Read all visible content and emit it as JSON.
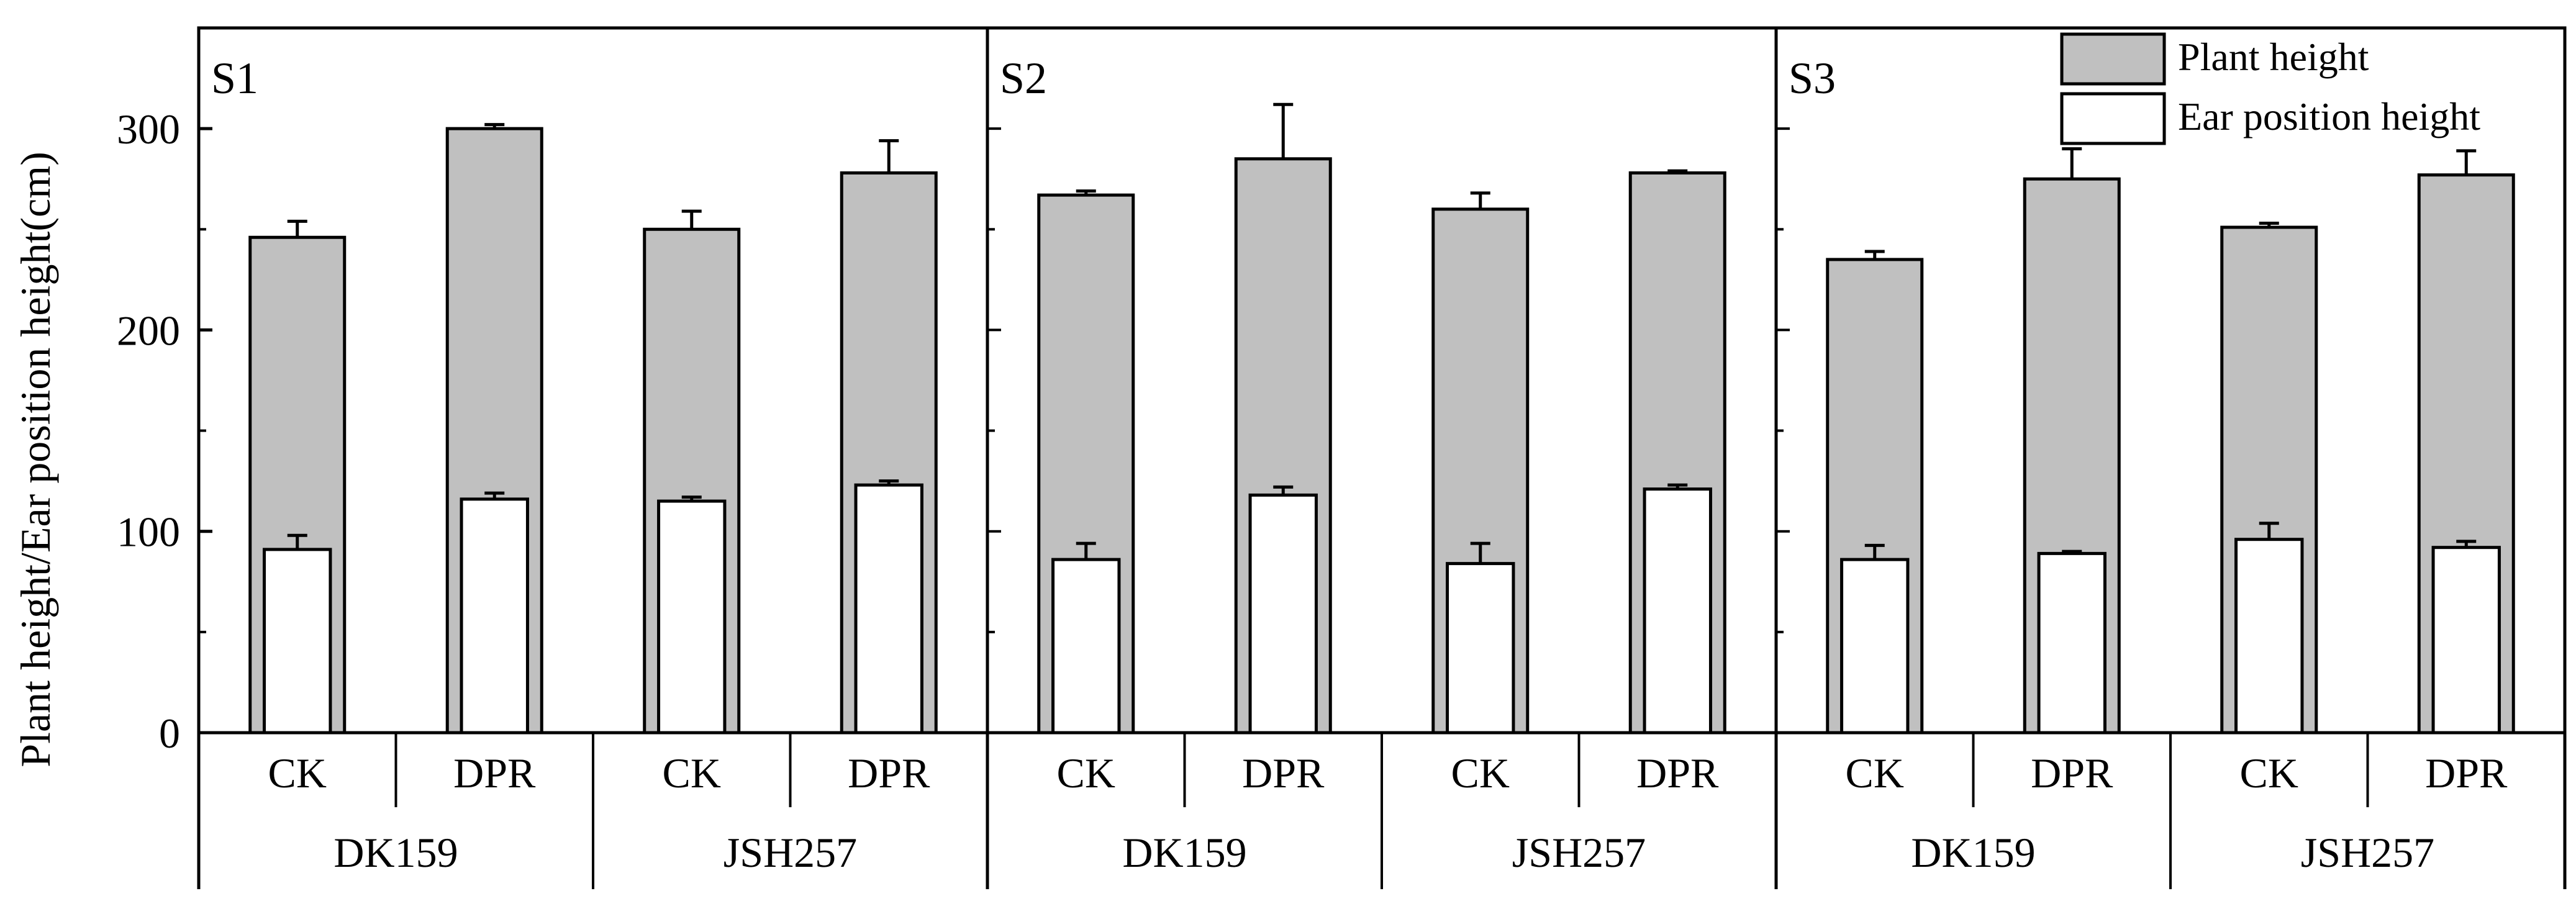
{
  "chart_data": {
    "type": "bar",
    "subtype": "overlaid-bar-with-error-bars",
    "ylabel": "Plant height/Ear position height(cm)",
    "ylim": [
      0,
      350
    ],
    "yticks": [
      0,
      100,
      200,
      300
    ],
    "legend": {
      "position": "top-right",
      "entries": [
        {
          "name": "Plant height",
          "color": "#c0c0c0"
        },
        {
          "name": "Ear position height",
          "color": "#ffffff"
        }
      ]
    },
    "panels": [
      {
        "label": "S1",
        "groups": [
          {
            "name": "DK159",
            "treatments": [
              {
                "name": "CK",
                "plant_height": 246,
                "plant_height_err": 8,
                "ear_height": 91,
                "ear_height_err": 7
              },
              {
                "name": "DPR",
                "plant_height": 300,
                "plant_height_err": 2,
                "ear_height": 116,
                "ear_height_err": 3
              }
            ]
          },
          {
            "name": "JSH257",
            "treatments": [
              {
                "name": "CK",
                "plant_height": 250,
                "plant_height_err": 9,
                "ear_height": 115,
                "ear_height_err": 2
              },
              {
                "name": "DPR",
                "plant_height": 278,
                "plant_height_err": 16,
                "ear_height": 123,
                "ear_height_err": 2
              }
            ]
          }
        ]
      },
      {
        "label": "S2",
        "groups": [
          {
            "name": "DK159",
            "treatments": [
              {
                "name": "CK",
                "plant_height": 267,
                "plant_height_err": 2,
                "ear_height": 86,
                "ear_height_err": 8
              },
              {
                "name": "DPR",
                "plant_height": 285,
                "plant_height_err": 27,
                "ear_height": 118,
                "ear_height_err": 4
              }
            ]
          },
          {
            "name": "JSH257",
            "treatments": [
              {
                "name": "CK",
                "plant_height": 260,
                "plant_height_err": 8,
                "ear_height": 84,
                "ear_height_err": 10
              },
              {
                "name": "DPR",
                "plant_height": 278,
                "plant_height_err": 1,
                "ear_height": 121,
                "ear_height_err": 2
              }
            ]
          }
        ]
      },
      {
        "label": "S3",
        "groups": [
          {
            "name": "DK159",
            "treatments": [
              {
                "name": "CK",
                "plant_height": 235,
                "plant_height_err": 4,
                "ear_height": 86,
                "ear_height_err": 7
              },
              {
                "name": "DPR",
                "plant_height": 275,
                "plant_height_err": 15,
                "ear_height": 89,
                "ear_height_err": 1
              }
            ]
          },
          {
            "name": "JSH257",
            "treatments": [
              {
                "name": "CK",
                "plant_height": 251,
                "plant_height_err": 2,
                "ear_height": 96,
                "ear_height_err": 8
              },
              {
                "name": "DPR",
                "plant_height": 277,
                "plant_height_err": 12,
                "ear_height": 92,
                "ear_height_err": 3
              }
            ]
          }
        ]
      }
    ]
  }
}
